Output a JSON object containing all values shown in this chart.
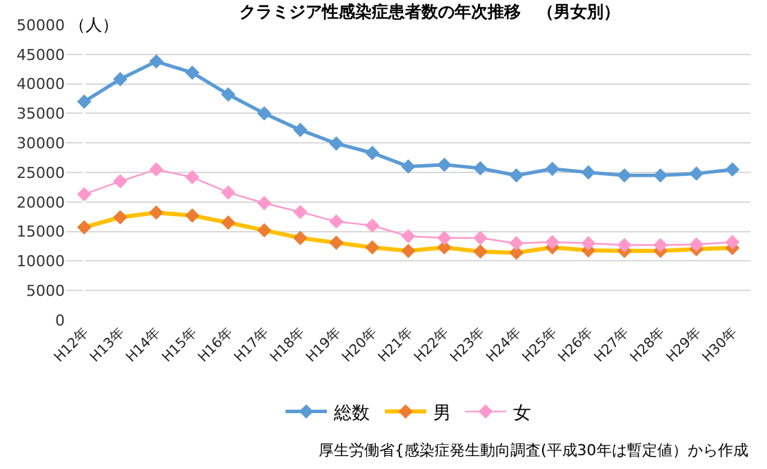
{
  "chart_data": {
    "type": "line",
    "title": "クラミジア性感染症患者数の年次推移　（男女別）",
    "ylabel": "（人）",
    "categories": [
      "H12年",
      "H13年",
      "H14年",
      "H15年",
      "H16年",
      "H17年",
      "H18年",
      "H19年",
      "H20年",
      "H21年",
      "H22年",
      "H23年",
      "H24年",
      "H25年",
      "H26年",
      "H27年",
      "H28年",
      "H29年",
      "H30年"
    ],
    "series": [
      {
        "name": "総数",
        "color": "#5b9bd5",
        "values": [
          37000,
          40800,
          43800,
          41900,
          38200,
          35000,
          32200,
          29900,
          28300,
          26000,
          26300,
          25700,
          24500,
          25600,
          25000,
          24500,
          24500,
          24800,
          25500
        ]
      },
      {
        "name": "男",
        "color": "#ffc000",
        "colors": [
          "#ed7d31",
          "#ed7d31",
          "#ed7d31",
          "#ed7d31",
          "#ed7d31",
          "#ed7d31",
          "#ed7d31",
          "#ed7d31",
          "#ed7d31",
          "#ed7d31",
          "#ed7d31",
          "#ed7d31",
          "#ed7d31",
          "#ed7d31",
          "#ed7d31",
          "#ed7d31",
          "#ed7d31",
          "#ed7d31",
          "#ed7d31"
        ],
        "values": [
          15700,
          17400,
          18200,
          17700,
          16500,
          15200,
          13900,
          13100,
          12300,
          11700,
          12300,
          11600,
          11400,
          12300,
          11800,
          11700,
          11700,
          12000,
          12200
        ]
      },
      {
        "name": "女",
        "color": "#ff99cc",
        "values": [
          21300,
          23500,
          25500,
          24200,
          21600,
          19800,
          18300,
          16700,
          16000,
          14200,
          13900,
          13900,
          13000,
          13200,
          13000,
          12700,
          12700,
          12800,
          13200
        ]
      }
    ],
    "ylim": [
      0,
      50000
    ],
    "yticks": [
      0,
      5000,
      10000,
      15000,
      20000,
      25000,
      30000,
      35000,
      40000,
      45000,
      50000
    ],
    "grid": "y",
    "legend": "bottom",
    "marker": "diamond",
    "line_style": "solid",
    "annotations": [
      "厚生労働省{感染症発生動向調査(平成30年は暫定値）から作成"
    ]
  }
}
